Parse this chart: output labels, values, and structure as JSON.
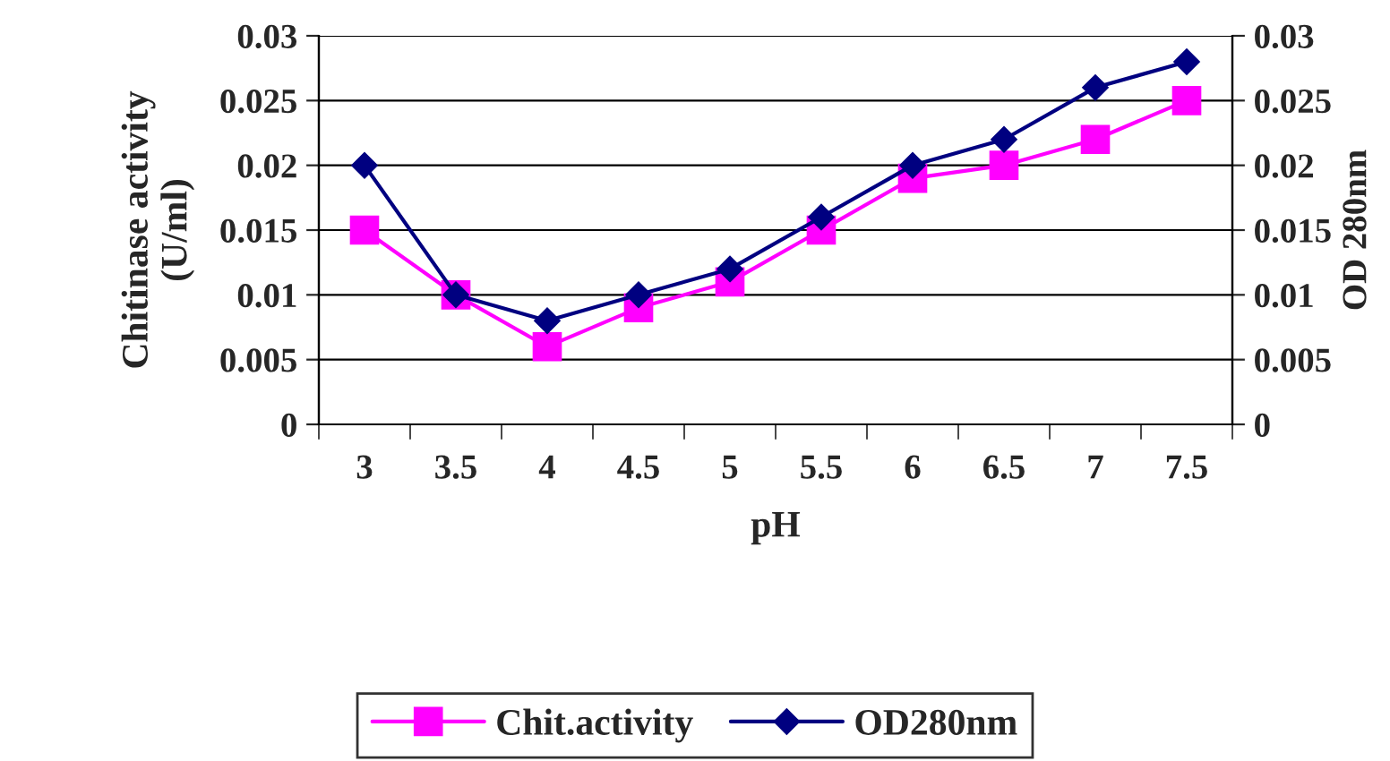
{
  "chart_data": {
    "type": "line",
    "xlabel": "pH",
    "ylabel": "Chitinase activity\n(U/ml)",
    "y2label": "OD 280nm",
    "categories": [
      "3",
      "3.5",
      "4",
      "4.5",
      "5",
      "5.5",
      "6",
      "6.5",
      "7",
      "7.5"
    ],
    "series": [
      {
        "name": "Chit.activity",
        "color": "#ff00ff",
        "marker": "square",
        "values": [
          0.015,
          0.01,
          0.006,
          0.009,
          0.011,
          0.015,
          0.019,
          0.02,
          0.022,
          0.025
        ]
      },
      {
        "name": "OD280nm",
        "color": "#000080",
        "marker": "diamond",
        "values": [
          0.02,
          0.01,
          0.008,
          0.01,
          0.012,
          0.016,
          0.02,
          0.022,
          0.026,
          0.028
        ]
      }
    ],
    "ylim": [
      0,
      0.03
    ],
    "yticks": [
      0,
      0.005,
      0.01,
      0.015,
      0.02,
      0.025,
      0.03
    ],
    "y2lim": [
      0,
      0.03
    ],
    "y2ticks": [
      0,
      0.005,
      0.01,
      0.015,
      0.02,
      0.025,
      0.03
    ],
    "grid": "y",
    "legend": "bottom",
    "line_style": "solid"
  }
}
